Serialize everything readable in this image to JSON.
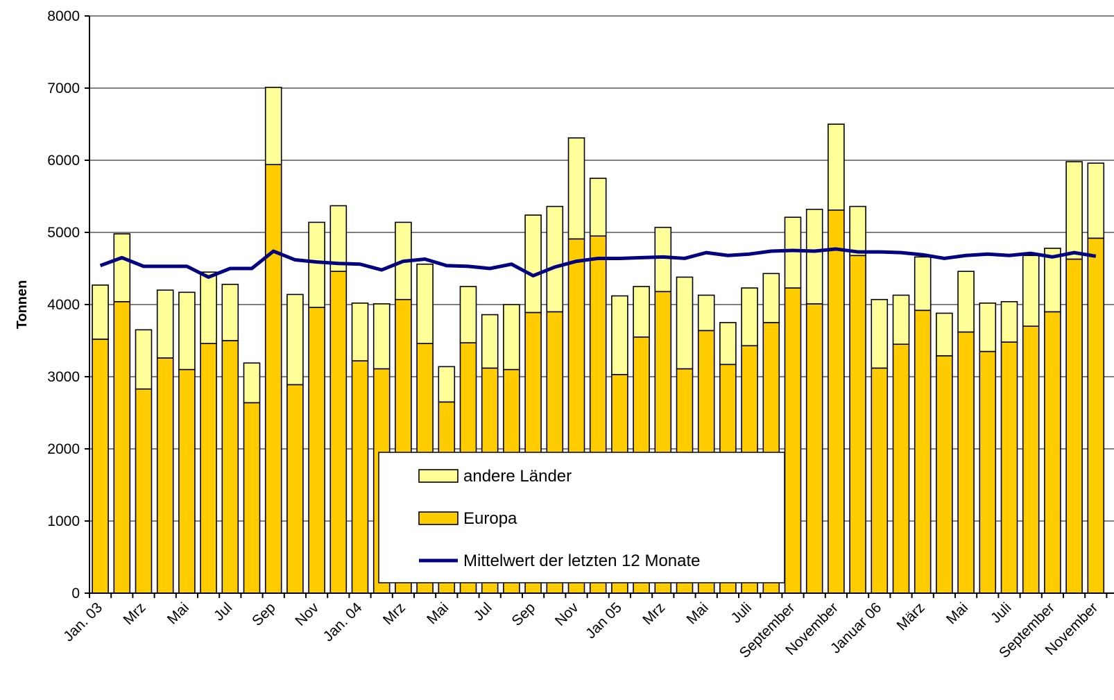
{
  "chart_data": {
    "type": "bar",
    "stacked": true,
    "y_label": "Tonnen",
    "categories": [
      "Jan. 03",
      null,
      "Mrz",
      null,
      "Mai",
      null,
      "Jul",
      null,
      "Sep",
      null,
      "Nov",
      null,
      "Jan. 04",
      null,
      "Mrz",
      null,
      "Mai",
      null,
      "Jul",
      null,
      "Sep",
      null,
      "Nov",
      null,
      "Jan 05",
      null,
      "Mrz",
      null,
      "Mai",
      null,
      "Juli",
      null,
      "September",
      null,
      "November",
      null,
      "Januar 06",
      null,
      "März",
      null,
      "Mai",
      null,
      "Juli",
      null,
      "September",
      null,
      "November"
    ],
    "series": [
      {
        "name": "andere Länder",
        "type": "bar",
        "color": "#ffff99",
        "values": [
          750,
          940,
          820,
          940,
          1070,
          990,
          780,
          550,
          1070,
          1250,
          1180,
          910,
          800,
          900,
          1070,
          1100,
          490,
          780,
          740,
          900,
          1350,
          1460,
          1400,
          800,
          1090,
          700,
          890,
          1270,
          490,
          580,
          800,
          680,
          980,
          1310,
          1190,
          680,
          950,
          680,
          740,
          590,
          840,
          670,
          560,
          980,
          880,
          1350,
          1040
        ]
      },
      {
        "name": "Europa",
        "type": "bar",
        "color": "#ffcc00",
        "values": [
          3520,
          4040,
          2830,
          3260,
          3100,
          3460,
          3500,
          2640,
          5940,
          2890,
          3960,
          4460,
          3220,
          3110,
          4070,
          3460,
          2650,
          3470,
          3120,
          3100,
          3890,
          3900,
          4910,
          4950,
          3030,
          3550,
          4180,
          3110,
          3640,
          3170,
          3430,
          3750,
          4230,
          4010,
          5310,
          4680,
          3120,
          3450,
          3920,
          3290,
          3620,
          3350,
          3480,
          3700,
          3900,
          4630,
          4920
        ]
      },
      {
        "name": "Mittelwert der letzten 12 Monate",
        "type": "line",
        "color": "#000080",
        "values": [
          4540,
          4650,
          4530,
          4530,
          4530,
          4380,
          4500,
          4500,
          4740,
          4620,
          4590,
          4570,
          4560,
          4480,
          4600,
          4630,
          4540,
          4530,
          4500,
          4560,
          4400,
          4520,
          4600,
          4640,
          4640,
          4650,
          4660,
          4640,
          4720,
          4680,
          4700,
          4740,
          4750,
          4740,
          4770,
          4730,
          4730,
          4720,
          4690,
          4640,
          4680,
          4700,
          4680,
          4710,
          4660,
          4720,
          4670
        ]
      }
    ],
    "ylim": [
      0,
      8000
    ],
    "yticks": [
      0,
      1000,
      2000,
      3000,
      4000,
      5000,
      6000,
      7000,
      8000
    ],
    "grid": true
  }
}
